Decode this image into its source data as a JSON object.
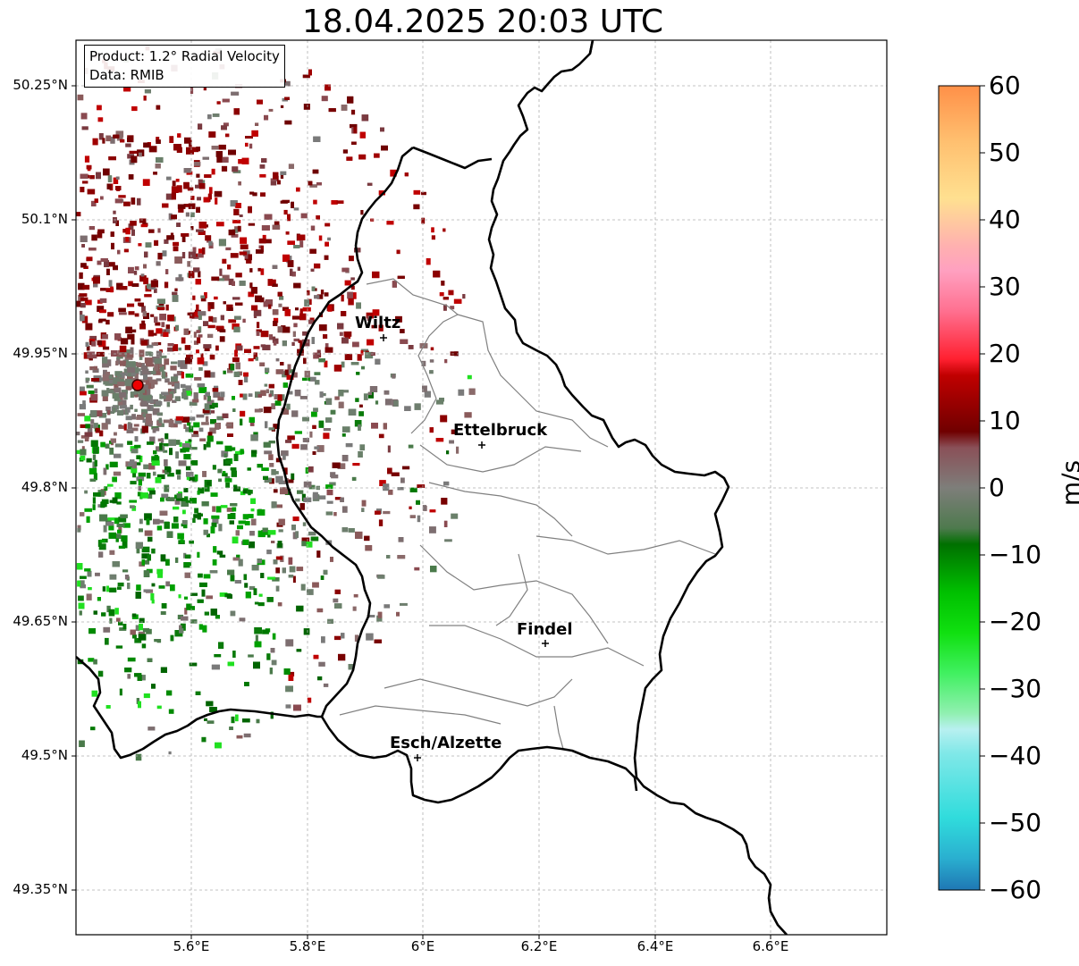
{
  "title": "18.04.2025 20:03 UTC",
  "info": {
    "product": "Product: 1.2° Radial Velocity",
    "data": "Data: RMIB"
  },
  "y_ticks": [
    "50.25°N",
    "50.1°N",
    "49.95°N",
    "49.8°N",
    "49.65°N",
    "49.5°N",
    "49.35°N"
  ],
  "x_ticks": [
    "5.6°E",
    "5.8°E",
    "6°E",
    "6.2°E",
    "6.4°E",
    "6.6°E"
  ],
  "cities": {
    "wiltz": "Wiltz",
    "ettelbruck": "Ettelbruck",
    "findel": "Findel",
    "esch": "Esch/Alzette"
  },
  "colorbar": {
    "unit": "m/s",
    "ticks": [
      "60",
      "50",
      "40",
      "30",
      "20",
      "10",
      "0",
      "−10",
      "−20",
      "−30",
      "−40",
      "−50",
      "−60"
    ],
    "range": [
      -60,
      60
    ],
    "colors": [
      "#1f77b4",
      "#2ab0d0",
      "#33dcdc",
      "#66e6e6",
      "#b4f0f0",
      "#90f0b0",
      "#50f070",
      "#20e020",
      "#00c000",
      "#009000",
      "#006400",
      "#5a7a5a",
      "#7a7a7a",
      "#8a5a5a",
      "#780000",
      "#b00000",
      "#ee0000",
      "#ff5060",
      "#ff80c0",
      "#ffb0b0",
      "#ffe090",
      "#ffc070",
      "#ff9050"
    ]
  }
}
